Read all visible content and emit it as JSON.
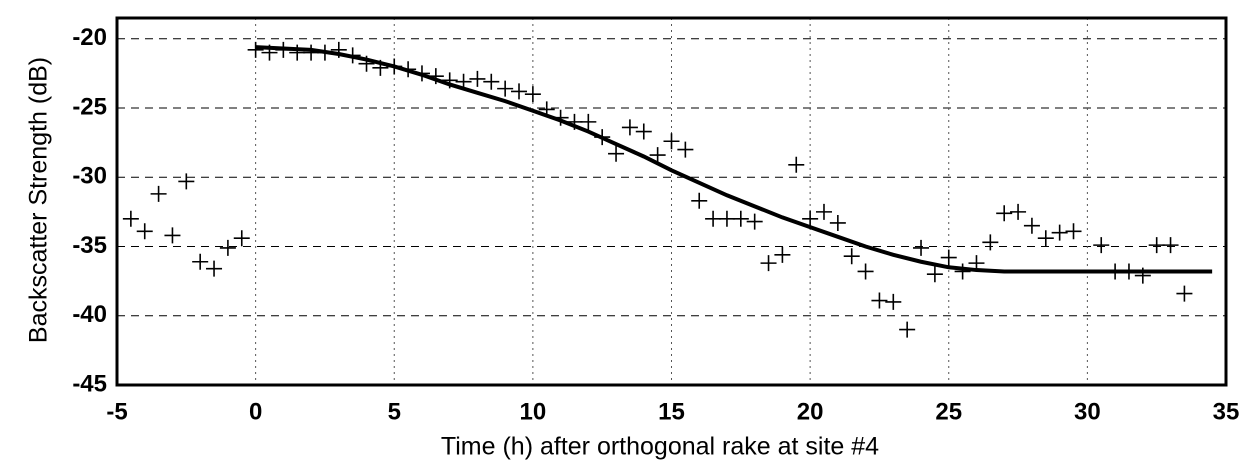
{
  "chart_data": {
    "type": "scatter",
    "x_label": "Time (h) after orthogonal rake at site #4",
    "y_label": "Backscatter Strength (dB)",
    "xlim": [
      -5,
      35
    ],
    "xticks": [
      -5,
      0,
      5,
      10,
      15,
      20,
      25,
      30,
      35
    ],
    "ylim": [
      -45,
      -18.5
    ],
    "yticks": [
      -45,
      -40,
      -35,
      -30,
      -25,
      -20
    ],
    "grid": true,
    "series": [
      {
        "color": "#000000",
        "marker": "plus",
        "x": [
          -4.5,
          -4,
          -3.5,
          -3,
          -2.5,
          -2,
          -1.5,
          -1,
          -0.5,
          0,
          0.5,
          1,
          1.5,
          2,
          2.5,
          3,
          3.5,
          4,
          4.5,
          5,
          5.5,
          6,
          6.5,
          7,
          7.5,
          8,
          8.5,
          9,
          9.5,
          10,
          10.5,
          11,
          11.5,
          12,
          12.5,
          13,
          13.5,
          14,
          14.5,
          15,
          15.5,
          16,
          16.5,
          17,
          17.5,
          18,
          18.5,
          19,
          19.5,
          20,
          20.5,
          21,
          21.5,
          22,
          22.5,
          23,
          23.5,
          24,
          24.5,
          25,
          25.5,
          26,
          26.5,
          27,
          27.5,
          28,
          28.5,
          29,
          29.5,
          30.5,
          31,
          31.5,
          32,
          32.5,
          33,
          33.5
        ],
        "values": [
          -33,
          -33.9,
          -31.2,
          -34.2,
          -30.3,
          -36.1,
          -36.6,
          -35.1,
          -34.4,
          -20.8,
          -21,
          -20.8,
          -21,
          -21,
          -21,
          -20.8,
          -21.2,
          -21.8,
          -22.1,
          -22,
          -22.2,
          -22.5,
          -22.7,
          -23,
          -23.1,
          -22.9,
          -23.1,
          -23.6,
          -23.8,
          -24,
          -25.1,
          -25.7,
          -26,
          -26,
          -27.1,
          -28.3,
          -26.4,
          -26.7,
          -28.4,
          -27.4,
          -28,
          -31.7,
          -33,
          -33,
          -33,
          -33.2,
          -36.2,
          -35.6,
          -29.1,
          -33,
          -32.5,
          -33.3,
          -35.7,
          -36.8,
          -38.9,
          -39,
          -41,
          -35.1,
          -37,
          -35.8,
          -36.8,
          -36.2,
          -34.7,
          -32.6,
          -32.5,
          -33.5,
          -34.4,
          -34,
          -33.9,
          -34.9,
          -36.8,
          -36.8,
          -37.1,
          -34.9,
          -34.9,
          -38.4
        ]
      },
      {
        "color": "#000000",
        "line": true,
        "x": [
          0,
          1,
          2,
          3,
          4,
          5,
          6,
          7,
          8,
          9,
          10,
          11,
          12,
          13,
          14,
          15,
          16,
          17,
          18,
          19,
          20,
          21,
          22,
          23,
          24,
          25,
          26,
          27,
          28,
          30,
          32,
          34.5
        ],
        "values": [
          -20.6,
          -20.7,
          -20.8,
          -21.1,
          -21.5,
          -22,
          -22.6,
          -23.3,
          -23.9,
          -24.5,
          -25.2,
          -25.9,
          -26.7,
          -27.6,
          -28.5,
          -29.5,
          -30.4,
          -31.3,
          -32.1,
          -32.9,
          -33.6,
          -34.3,
          -35,
          -35.6,
          -36.1,
          -36.5,
          -36.7,
          -36.8,
          -36.8,
          -36.8,
          -36.8,
          -36.8
        ]
      }
    ]
  }
}
